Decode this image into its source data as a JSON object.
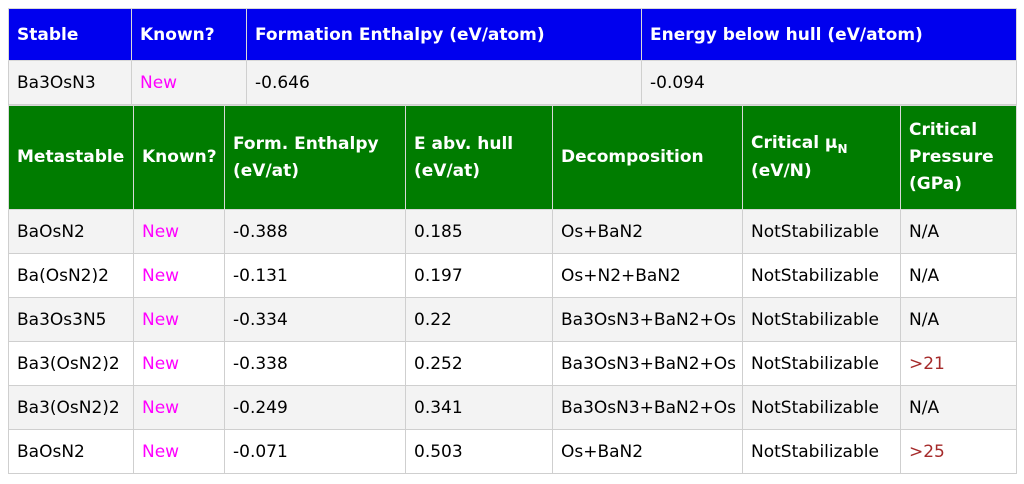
{
  "stable": {
    "headers": [
      "Stable",
      "Known?",
      "Formation Enthalpy (eV/atom)",
      "Energy below hull (eV/atom)"
    ],
    "row": {
      "compound": "Ba3OsN3",
      "known": "New",
      "formation_enthalpy": "-0.646",
      "energy_below_hull": "-0.094"
    }
  },
  "metastable": {
    "headers": {
      "metastable": "Metastable",
      "known": "Known?",
      "form_enthalpy_line1": "Form. Enthalpy",
      "form_enthalpy_line2": "(eV/at)",
      "e_abv_hull_line1": "E abv. hull",
      "e_abv_hull_line2": "(eV/at)",
      "decomposition": "Decomposition",
      "critical_mu_line1": "Critical μ",
      "critical_mu_sub": "N",
      "critical_mu_line2": "(eV/N)",
      "critical_pressure_line1": "Critical",
      "critical_pressure_line2": "Pressure",
      "critical_pressure_line3": "(GPa)"
    },
    "rows": [
      {
        "compound": "BaOsN2",
        "known": "New",
        "form_enthalpy": "-0.388",
        "e_abv_hull": "0.185",
        "decomposition": "Os+BaN2",
        "critical_mu": "NotStabilizable",
        "critical_pressure": "N/A"
      },
      {
        "compound": "Ba(OsN2)2",
        "known": "New",
        "form_enthalpy": "-0.131",
        "e_abv_hull": "0.197",
        "decomposition": "Os+N2+BaN2",
        "critical_mu": "NotStabilizable",
        "critical_pressure": "N/A"
      },
      {
        "compound": "Ba3Os3N5",
        "known": "New",
        "form_enthalpy": "-0.334",
        "e_abv_hull": "0.22",
        "decomposition": "Ba3OsN3+BaN2+Os",
        "critical_mu": "NotStabilizable",
        "critical_pressure": "N/A"
      },
      {
        "compound": "Ba3(OsN2)2",
        "known": "New",
        "form_enthalpy": "-0.338",
        "e_abv_hull": "0.252",
        "decomposition": "Ba3OsN3+BaN2+Os",
        "critical_mu": "NotStabilizable",
        "critical_pressure": ">21"
      },
      {
        "compound": "Ba3(OsN2)2",
        "known": "New",
        "form_enthalpy": "-0.249",
        "e_abv_hull": "0.341",
        "decomposition": "Ba3OsN3+BaN2+Os",
        "critical_mu": "NotStabilizable",
        "critical_pressure": "N/A"
      },
      {
        "compound": "BaOsN2",
        "known": "New",
        "form_enthalpy": "-0.071",
        "e_abv_hull": "0.503",
        "decomposition": "Os+BaN2",
        "critical_mu": "NotStabilizable",
        "critical_pressure": ">25"
      }
    ]
  },
  "colors": {
    "stable_header_bg": "#0000ee",
    "metastable_header_bg": "#007c00",
    "new_text": "#ff00ff",
    "pressure_value_text": "#a52a2a"
  }
}
